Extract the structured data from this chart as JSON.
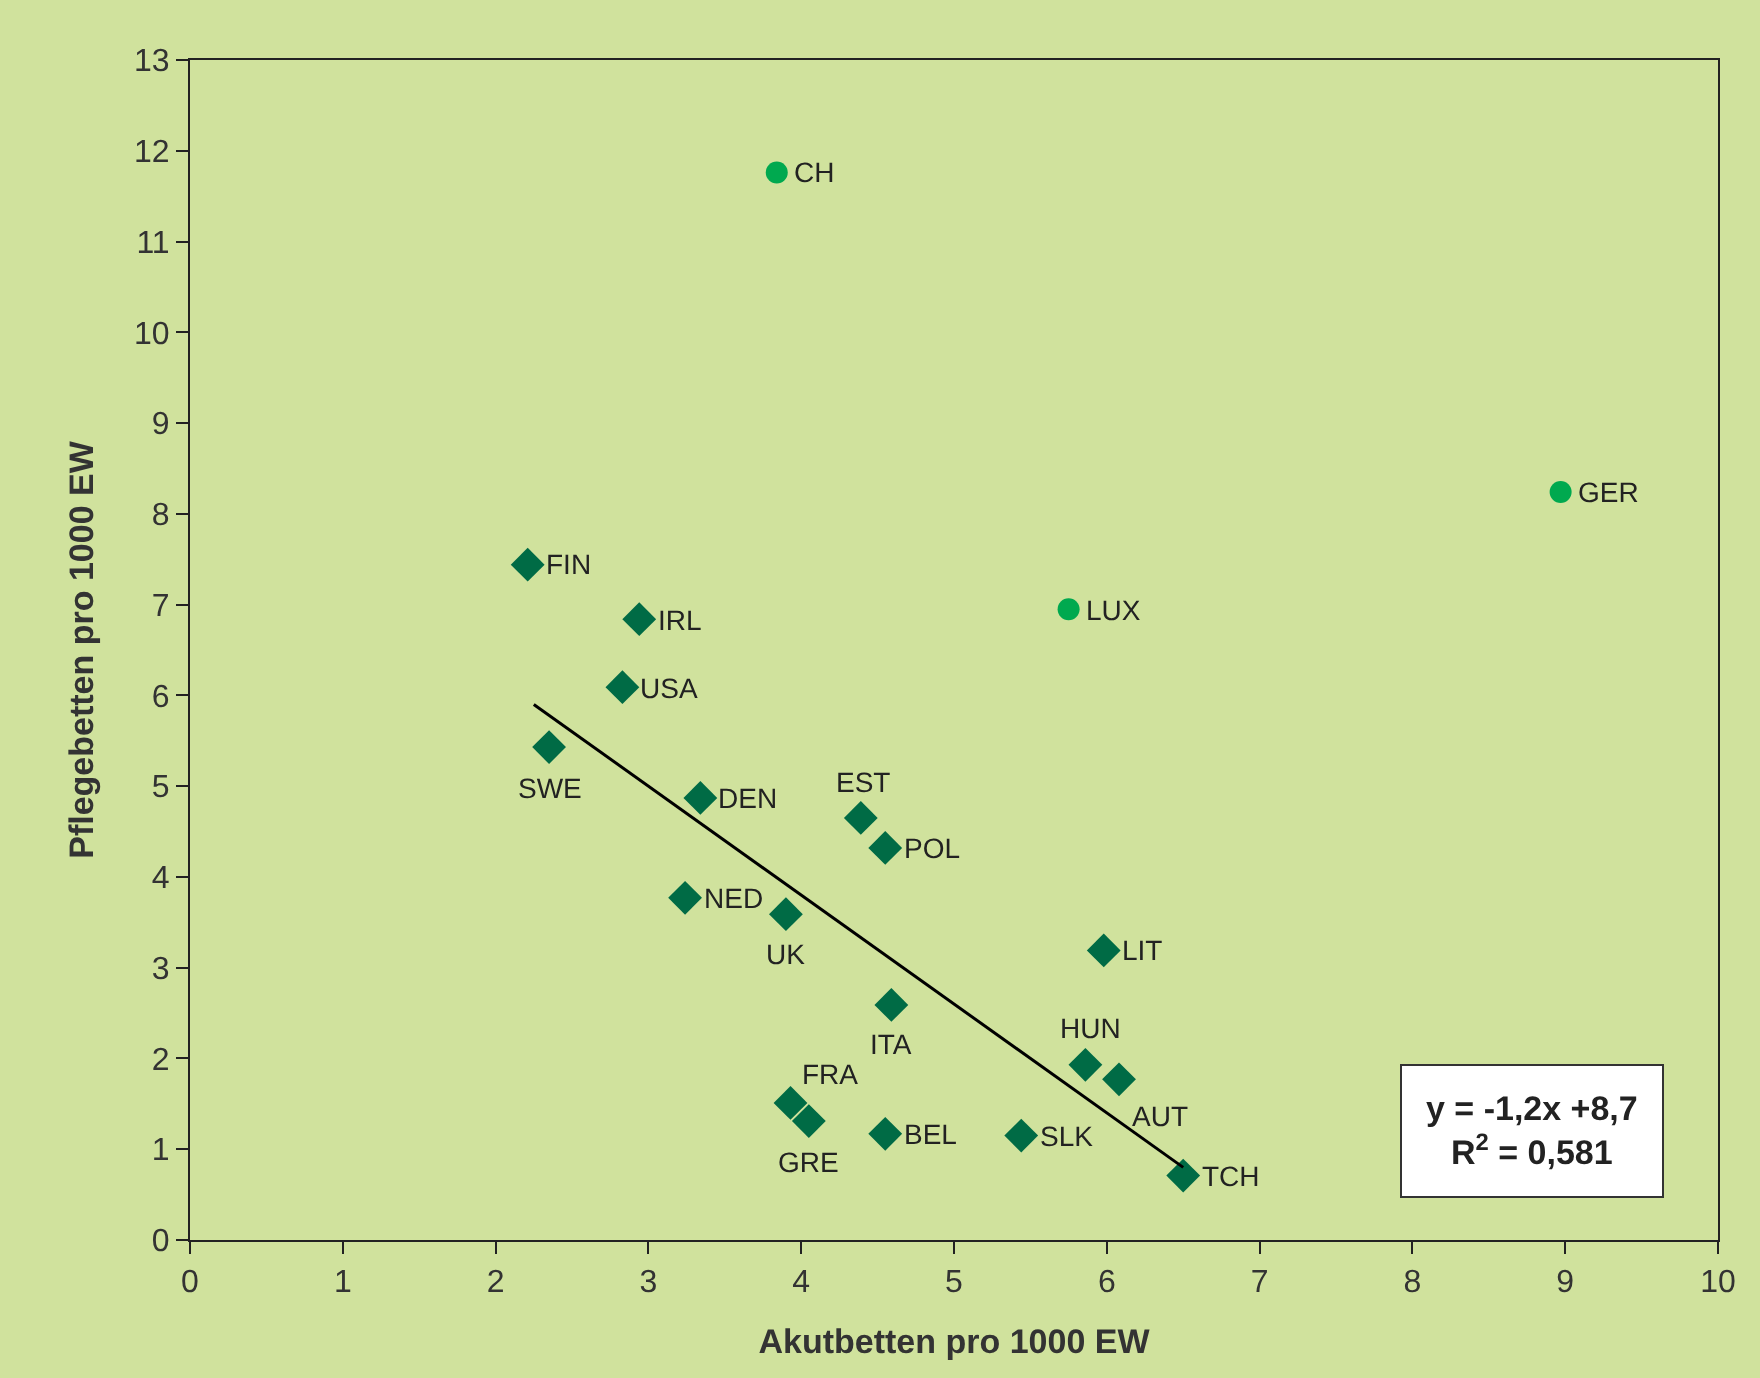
{
  "chart_data": {
    "type": "scatter",
    "xlabel": "Akutbetten pro 1000 EW",
    "ylabel": "Pflegebetten pro 1000 EW",
    "xlim": [
      0,
      10
    ],
    "xticks": [
      0,
      1,
      2,
      3,
      4,
      5,
      6,
      7,
      8,
      9,
      10
    ],
    "ylim": [
      0,
      13
    ],
    "yticks": [
      0,
      1,
      2,
      3,
      4,
      5,
      6,
      7,
      8,
      9,
      10,
      11,
      12,
      13
    ],
    "grid": false,
    "series": [
      {
        "color": "#006b45",
        "marker": "diamond",
        "x": [
          2.21,
          2.94,
          2.83,
          2.35,
          3.34,
          4.39,
          4.55,
          3.24,
          3.9,
          5.98,
          4.59,
          5.86,
          6.08,
          3.93,
          4.05,
          4.55,
          5.44,
          6.5
        ],
        "values": [
          7.44,
          6.84,
          6.09,
          5.43,
          4.87,
          4.65,
          4.32,
          3.77,
          3.59,
          3.19,
          2.59,
          1.93,
          1.77,
          1.51,
          1.31,
          1.17,
          1.15,
          0.71
        ]
      },
      {
        "color": "#00a94f",
        "marker": "circle",
        "x": [
          3.84,
          8.97,
          5.75
        ],
        "values": [
          11.76,
          8.24,
          6.95
        ]
      },
      {
        "type": "line",
        "color": "#000000",
        "marker": "none",
        "x": [
          2.25,
          6.5
        ],
        "values": [
          5.9,
          0.8
        ]
      }
    ],
    "annotations": [
      {
        "text": "FIN",
        "x": 2.21,
        "y": 7.44
      },
      {
        "text": "IRL",
        "x": 2.94,
        "y": 6.84
      },
      {
        "text": "USA",
        "x": 2.83,
        "y": 6.09
      },
      {
        "text": "SWE",
        "x": 2.35,
        "y": 5.43
      },
      {
        "text": "DEN",
        "x": 3.34,
        "y": 4.87
      },
      {
        "text": "EST",
        "x": 4.39,
        "y": 4.65
      },
      {
        "text": "POL",
        "x": 4.55,
        "y": 4.32
      },
      {
        "text": "NED",
        "x": 3.24,
        "y": 3.77
      },
      {
        "text": "UK",
        "x": 3.9,
        "y": 3.59
      },
      {
        "text": "LIT",
        "x": 5.98,
        "y": 3.19
      },
      {
        "text": "ITA",
        "x": 4.59,
        "y": 2.59
      },
      {
        "text": "HUN",
        "x": 5.86,
        "y": 1.93
      },
      {
        "text": "AUT",
        "x": 6.08,
        "y": 1.77
      },
      {
        "text": "FRA",
        "x": 3.93,
        "y": 1.51
      },
      {
        "text": "GRE",
        "x": 4.05,
        "y": 1.31
      },
      {
        "text": "BEL",
        "x": 4.55,
        "y": 1.17
      },
      {
        "text": "SLK",
        "x": 5.44,
        "y": 1.15
      },
      {
        "text": "TCH",
        "x": 6.5,
        "y": 0.71
      },
      {
        "text": "CH",
        "x": 3.84,
        "y": 11.76
      },
      {
        "text": "GER",
        "x": 8.97,
        "y": 8.24
      },
      {
        "text": "LUX",
        "x": 5.75,
        "y": 6.95
      },
      "y = -1,2x +8,7",
      "R$^{2}$ = 0,581"
    ]
  }
}
